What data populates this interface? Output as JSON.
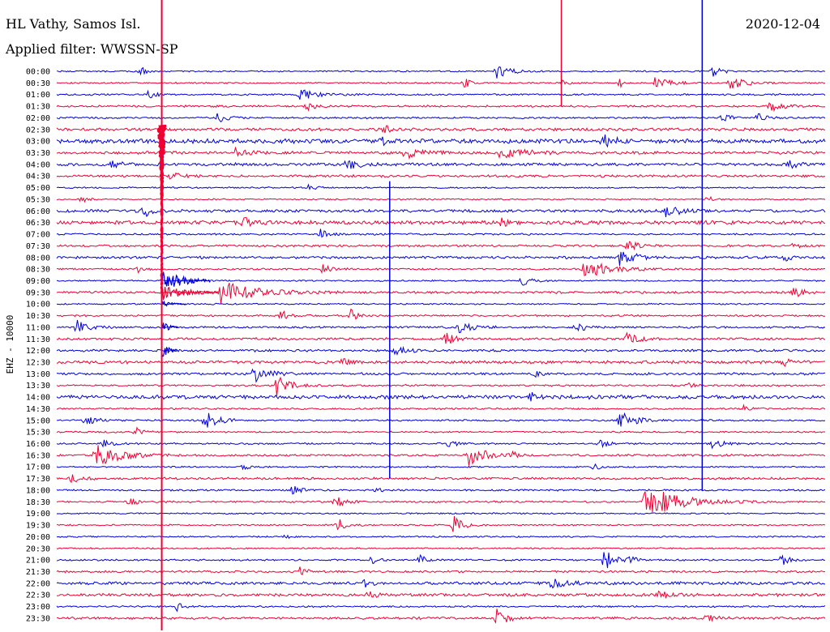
{
  "header": {
    "station": "HL Vathy, Samos Isl.",
    "filter": "Applied filter: WWSSN-SP",
    "date": "2020-12-04"
  },
  "chart_data": {
    "type": "line",
    "title": "HL Vathy, Samos Isl.",
    "subtitle": "Applied filter: WWSSN-SP",
    "date": "2020-12-04",
    "ylabel": "EHZ - 10000",
    "xlabel": "",
    "colors": [
      "#0000dd",
      "#ee0033"
    ],
    "row_times": [
      "00:00",
      "00:30",
      "01:00",
      "01:30",
      "02:00",
      "02:30",
      "03:00",
      "03:30",
      "04:00",
      "04:30",
      "05:00",
      "05:30",
      "06:00",
      "06:30",
      "07:00",
      "07:30",
      "08:00",
      "08:30",
      "09:00",
      "09:30",
      "10:00",
      "10:30",
      "11:00",
      "11:30",
      "12:00",
      "12:30",
      "13:00",
      "13:30",
      "14:00",
      "14:30",
      "15:00",
      "15:30",
      "16:00",
      "16:30",
      "17:00",
      "17:30",
      "18:00",
      "18:30",
      "19:00",
      "19:30",
      "20:00",
      "20:30",
      "21:00",
      "21:30",
      "22:00",
      "22:30",
      "23:00",
      "23:30"
    ],
    "row_duration_min": 30,
    "noise": [
      1.0,
      1.0,
      1.2,
      1.4,
      1.2,
      2.0,
      3.0,
      2.0,
      2.0,
      1.6,
      1.0,
      1.0,
      2.0,
      2.5,
      1.2,
      1.4,
      1.8,
      1.2,
      1.0,
      1.6,
      1.0,
      1.2,
      1.4,
      1.6,
      1.6,
      2.0,
      1.6,
      1.2,
      2.5,
      1.2,
      1.2,
      1.0,
      1.2,
      1.4,
      1.0,
      1.6,
      1.2,
      1.2,
      1.0,
      1.0,
      1.0,
      1.0,
      1.2,
      1.4,
      2.0,
      2.0,
      1.2,
      1.6
    ],
    "events": [
      {
        "row": 0,
        "min": 3.3,
        "amp": 6,
        "dur": 0.3
      },
      {
        "row": 0,
        "min": 17.2,
        "amp": 10,
        "dur": 0.8
      },
      {
        "row": 0,
        "min": 25.6,
        "amp": 8,
        "dur": 0.5
      },
      {
        "row": 1,
        "min": 15.9,
        "amp": 7,
        "dur": 0.4
      },
      {
        "row": 1,
        "min": 19.8,
        "amp": 5,
        "dur": 0.3
      },
      {
        "row": 1,
        "min": 22.0,
        "amp": 5,
        "dur": 0.3
      },
      {
        "row": 1,
        "min": 23.3,
        "amp": 9,
        "dur": 1.0
      },
      {
        "row": 1,
        "min": 26.3,
        "amp": 8,
        "dur": 1.0
      },
      {
        "row": 2,
        "min": 3.6,
        "amp": 6,
        "dur": 0.4
      },
      {
        "row": 2,
        "min": 9.5,
        "amp": 8,
        "dur": 1.0
      },
      {
        "row": 3,
        "min": 9.8,
        "amp": 5,
        "dur": 0.6
      },
      {
        "row": 3,
        "min": 27.8,
        "amp": 7,
        "dur": 0.8
      },
      {
        "row": 4,
        "min": 6.3,
        "amp": 6,
        "dur": 0.6
      },
      {
        "row": 4,
        "min": 26.0,
        "amp": 5,
        "dur": 0.5
      },
      {
        "row": 4,
        "min": 27.4,
        "amp": 6,
        "dur": 0.5
      },
      {
        "row": 5,
        "min": 12.8,
        "amp": 6,
        "dur": 0.4
      },
      {
        "row": 6,
        "min": 12.7,
        "amp": 6,
        "dur": 0.5
      },
      {
        "row": 6,
        "min": 21.3,
        "amp": 10,
        "dur": 0.6
      },
      {
        "row": 7,
        "min": 7.0,
        "amp": 6,
        "dur": 0.8
      },
      {
        "row": 7,
        "min": 13.6,
        "amp": 7,
        "dur": 1.0
      },
      {
        "row": 7,
        "min": 17.3,
        "amp": 7,
        "dur": 1.6
      },
      {
        "row": 8,
        "min": 2.1,
        "amp": 5,
        "dur": 0.6
      },
      {
        "row": 8,
        "min": 11.3,
        "amp": 7,
        "dur": 0.8
      },
      {
        "row": 8,
        "min": 28.6,
        "amp": 5,
        "dur": 0.6
      },
      {
        "row": 9,
        "min": 4.4,
        "amp": 6,
        "dur": 0.6
      },
      {
        "row": 10,
        "min": 9.8,
        "amp": 4,
        "dur": 0.5
      },
      {
        "row": 11,
        "min": 1.0,
        "amp": 4,
        "dur": 0.4
      },
      {
        "row": 11,
        "min": 25.4,
        "amp": 4,
        "dur": 0.4
      },
      {
        "row": 12,
        "min": 3.4,
        "amp": 8,
        "dur": 0.5
      },
      {
        "row": 12,
        "min": 23.7,
        "amp": 8,
        "dur": 1.0
      },
      {
        "row": 13,
        "min": 7.3,
        "amp": 8,
        "dur": 0.6
      },
      {
        "row": 13,
        "min": 17.4,
        "amp": 5,
        "dur": 0.5
      },
      {
        "row": 14,
        "min": 10.3,
        "amp": 6,
        "dur": 0.6
      },
      {
        "row": 15,
        "min": 22.3,
        "amp": 8,
        "dur": 0.6
      },
      {
        "row": 15,
        "min": 28.8,
        "amp": 5,
        "dur": 0.5
      },
      {
        "row": 16,
        "min": 22.0,
        "amp": 14,
        "dur": 0.8
      },
      {
        "row": 16,
        "min": 28.4,
        "amp": 5,
        "dur": 0.5
      },
      {
        "row": 17,
        "min": 3.2,
        "amp": 4,
        "dur": 0.4
      },
      {
        "row": 17,
        "min": 10.4,
        "amp": 6,
        "dur": 0.6
      },
      {
        "row": 17,
        "min": 20.6,
        "amp": 12,
        "dur": 1.6
      },
      {
        "row": 18,
        "min": 18.2,
        "amp": 7,
        "dur": 0.6
      },
      {
        "row": 19,
        "min": 6.4,
        "amp": 14,
        "dur": 2.2
      },
      {
        "row": 19,
        "min": 28.8,
        "amp": 7,
        "dur": 0.5
      },
      {
        "row": 21,
        "min": 8.8,
        "amp": 8,
        "dur": 0.4
      },
      {
        "row": 21,
        "min": 11.5,
        "amp": 8,
        "dur": 0.4
      },
      {
        "row": 22,
        "min": 0.8,
        "amp": 8,
        "dur": 0.8
      },
      {
        "row": 22,
        "min": 15.7,
        "amp": 6,
        "dur": 1.0
      },
      {
        "row": 22,
        "min": 20.3,
        "amp": 6,
        "dur": 0.6
      },
      {
        "row": 23,
        "min": 15.2,
        "amp": 8,
        "dur": 0.5
      },
      {
        "row": 23,
        "min": 22.3,
        "amp": 10,
        "dur": 0.6
      },
      {
        "row": 24,
        "min": 13.2,
        "amp": 6,
        "dur": 0.8
      },
      {
        "row": 25,
        "min": 11.2,
        "amp": 5,
        "dur": 0.5
      },
      {
        "row": 25,
        "min": 28.4,
        "amp": 5,
        "dur": 0.5
      },
      {
        "row": 26,
        "min": 7.7,
        "amp": 14,
        "dur": 0.8
      },
      {
        "row": 26,
        "min": 18.7,
        "amp": 4,
        "dur": 0.4
      },
      {
        "row": 27,
        "min": 8.6,
        "amp": 14,
        "dur": 0.8
      },
      {
        "row": 27,
        "min": 24.6,
        "amp": 5,
        "dur": 0.4
      },
      {
        "row": 28,
        "min": 18.5,
        "amp": 6,
        "dur": 0.4
      },
      {
        "row": 29,
        "min": 26.8,
        "amp": 6,
        "dur": 0.4
      },
      {
        "row": 30,
        "min": 1.1,
        "amp": 5,
        "dur": 0.8
      },
      {
        "row": 30,
        "min": 5.8,
        "amp": 14,
        "dur": 0.8
      },
      {
        "row": 30,
        "min": 22.0,
        "amp": 10,
        "dur": 1.0
      },
      {
        "row": 31,
        "min": 3.1,
        "amp": 5,
        "dur": 0.5
      },
      {
        "row": 32,
        "min": 1.8,
        "amp": 6,
        "dur": 0.5
      },
      {
        "row": 32,
        "min": 15.3,
        "amp": 5,
        "dur": 0.5
      },
      {
        "row": 32,
        "min": 21.2,
        "amp": 5,
        "dur": 0.5
      },
      {
        "row": 32,
        "min": 25.6,
        "amp": 6,
        "dur": 0.8
      },
      {
        "row": 33,
        "min": 1.5,
        "amp": 14,
        "dur": 1.6
      },
      {
        "row": 33,
        "min": 16.1,
        "amp": 14,
        "dur": 1.0
      },
      {
        "row": 33,
        "min": 17.7,
        "amp": 6,
        "dur": 0.5
      },
      {
        "row": 34,
        "min": 7.3,
        "amp": 4,
        "dur": 0.4
      },
      {
        "row": 34,
        "min": 21.0,
        "amp": 4,
        "dur": 0.4
      },
      {
        "row": 35,
        "min": 0.6,
        "amp": 6,
        "dur": 0.5
      },
      {
        "row": 36,
        "min": 9.2,
        "amp": 6,
        "dur": 0.6
      },
      {
        "row": 36,
        "min": 12.5,
        "amp": 4,
        "dur": 0.4
      },
      {
        "row": 37,
        "min": 2.8,
        "amp": 6,
        "dur": 0.6
      },
      {
        "row": 37,
        "min": 10.9,
        "amp": 7,
        "dur": 0.6
      },
      {
        "row": 37,
        "min": 23.0,
        "amp": 20,
        "dur": 2.2
      },
      {
        "row": 39,
        "min": 11.0,
        "amp": 8,
        "dur": 0.6
      },
      {
        "row": 39,
        "min": 15.5,
        "amp": 12,
        "dur": 0.6
      },
      {
        "row": 40,
        "min": 8.9,
        "amp": 3,
        "dur": 0.4
      },
      {
        "row": 42,
        "min": 12.3,
        "amp": 5,
        "dur": 0.4
      },
      {
        "row": 42,
        "min": 14.2,
        "amp": 6,
        "dur": 0.4
      },
      {
        "row": 42,
        "min": 21.4,
        "amp": 14,
        "dur": 0.6
      },
      {
        "row": 42,
        "min": 22.4,
        "amp": 5,
        "dur": 0.4
      },
      {
        "row": 42,
        "min": 28.3,
        "amp": 7,
        "dur": 0.6
      },
      {
        "row": 43,
        "min": 9.5,
        "amp": 6,
        "dur": 0.4
      },
      {
        "row": 44,
        "min": 12.0,
        "amp": 5,
        "dur": 0.4
      },
      {
        "row": 44,
        "min": 19.3,
        "amp": 5,
        "dur": 1.4
      },
      {
        "row": 45,
        "min": 12.2,
        "amp": 4,
        "dur": 0.5
      },
      {
        "row": 45,
        "min": 23.5,
        "amp": 5,
        "dur": 0.8
      },
      {
        "row": 46,
        "min": 4.7,
        "amp": 5,
        "dur": 0.4
      },
      {
        "row": 47,
        "min": 17.2,
        "amp": 12,
        "dur": 0.6
      },
      {
        "row": 47,
        "min": 25.4,
        "amp": 4,
        "dur": 0.6
      }
    ],
    "marks": [
      {
        "min": 4.1,
        "from_row": 0,
        "to_row": 48,
        "color": "#ee0033"
      },
      {
        "min": 25.2,
        "from_row": 0,
        "to_row": 36,
        "color": "#0000dd"
      },
      {
        "min": 13.0,
        "from_row": 10,
        "to_row": 35,
        "color": "#0000dd"
      },
      {
        "min": 19.7,
        "from_row": 0,
        "to_row": 3,
        "color": "#ee0033"
      }
    ],
    "main_event": {
      "row": 5,
      "min": 4.1,
      "amp": 300,
      "dur": 8.0
    },
    "grid": false
  }
}
